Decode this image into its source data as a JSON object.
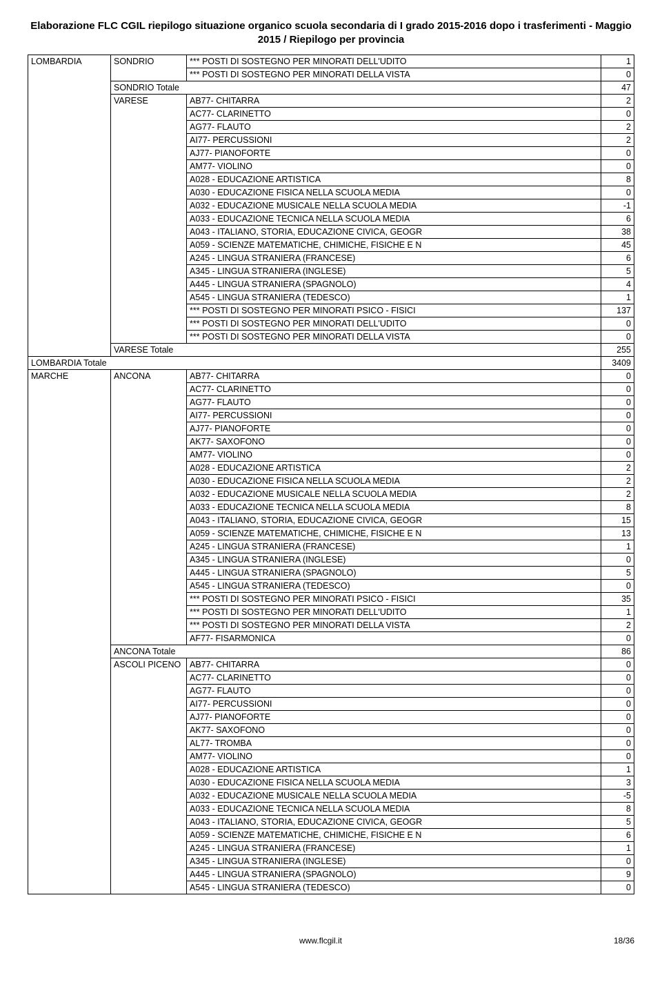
{
  "pageTitle": "Elaborazione FLC CGIL riepilogo situazione organico scuola secondaria di I grado 2015-2016 dopo i trasferimenti - Maggio 2015 / Riepilogo per provincia",
  "footerUrl": "www.flcgil.it",
  "pageNumber": "18/36",
  "regions": [
    {
      "name": "LOMBARDIA",
      "totalLabel": "LOMBARDIA Totale",
      "totalValue": 3409,
      "provinces": [
        {
          "name": "SONDRIO",
          "rows": [
            {
              "label": "*** POSTI DI SOSTEGNO    PER MINORATI DELL'UDITO",
              "value": 1
            },
            {
              "label": "*** POSTI DI SOSTEGNO    PER MINORATI DELLA VISTA",
              "value": 0
            }
          ],
          "totalLabel": "SONDRIO Totale",
          "totalValue": 47
        },
        {
          "name": "VARESE",
          "rows": [
            {
              "label": "AB77- CHITARRA",
              "value": 2
            },
            {
              "label": "AC77- CLARINETTO",
              "value": 0
            },
            {
              "label": "AG77- FLAUTO",
              "value": 2
            },
            {
              "label": "AI77- PERCUSSIONI",
              "value": 2
            },
            {
              "label": "AJ77- PIANOFORTE",
              "value": 0
            },
            {
              "label": "AM77- VIOLINO",
              "value": 0
            },
            {
              "label": "A028 - EDUCAZIONE ARTISTICA",
              "value": 8
            },
            {
              "label": "A030 - EDUCAZIONE FISICA NELLA SCUOLA MEDIA",
              "value": 0
            },
            {
              "label": "A032 - EDUCAZIONE MUSICALE NELLA SCUOLA MEDIA",
              "value": -1
            },
            {
              "label": "A033 - EDUCAZIONE TECNICA NELLA SCUOLA MEDIA",
              "value": 6
            },
            {
              "label": "A043 - ITALIANO, STORIA, EDUCAZIONE CIVICA, GEOGR",
              "value": 38
            },
            {
              "label": "A059 - SCIENZE MATEMATICHE, CHIMICHE, FISICHE E N",
              "value": 45
            },
            {
              "label": "A245 - LINGUA STRANIERA (FRANCESE)",
              "value": 6
            },
            {
              "label": "A345 - LINGUA STRANIERA (INGLESE)",
              "value": 5
            },
            {
              "label": "A445 - LINGUA STRANIERA (SPAGNOLO)",
              "value": 4
            },
            {
              "label": "A545 - LINGUA STRANIERA (TEDESCO)",
              "value": 1
            },
            {
              "label": "*** POSTI DI SOSTEGNO    PER MINORATI PSICO - FISICI",
              "value": 137
            },
            {
              "label": "*** POSTI DI SOSTEGNO    PER MINORATI DELL'UDITO",
              "value": 0
            },
            {
              "label": "*** POSTI DI SOSTEGNO    PER MINORATI DELLA VISTA",
              "value": 0
            }
          ],
          "totalLabel": "VARESE Totale",
          "totalValue": 255
        }
      ]
    },
    {
      "name": "MARCHE",
      "totalLabel": null,
      "totalValue": null,
      "provinces": [
        {
          "name": "ANCONA",
          "rows": [
            {
              "label": "AB77- CHITARRA",
              "value": 0
            },
            {
              "label": "AC77- CLARINETTO",
              "value": 0
            },
            {
              "label": "AG77- FLAUTO",
              "value": 0
            },
            {
              "label": "AI77- PERCUSSIONI",
              "value": 0
            },
            {
              "label": "AJ77- PIANOFORTE",
              "value": 0
            },
            {
              "label": "AK77- SAXOFONO",
              "value": 0
            },
            {
              "label": "AM77- VIOLINO",
              "value": 0
            },
            {
              "label": "A028 - EDUCAZIONE ARTISTICA",
              "value": 2
            },
            {
              "label": "A030 - EDUCAZIONE FISICA NELLA SCUOLA MEDIA",
              "value": 2
            },
            {
              "label": "A032 - EDUCAZIONE MUSICALE NELLA SCUOLA MEDIA",
              "value": 2
            },
            {
              "label": "A033 - EDUCAZIONE TECNICA NELLA SCUOLA MEDIA",
              "value": 8
            },
            {
              "label": "A043 - ITALIANO, STORIA, EDUCAZIONE CIVICA, GEOGR",
              "value": 15
            },
            {
              "label": "A059 - SCIENZE MATEMATICHE, CHIMICHE, FISICHE E N",
              "value": 13
            },
            {
              "label": "A245 - LINGUA STRANIERA (FRANCESE)",
              "value": 1
            },
            {
              "label": "A345 - LINGUA STRANIERA (INGLESE)",
              "value": 0
            },
            {
              "label": "A445 - LINGUA STRANIERA (SPAGNOLO)",
              "value": 5
            },
            {
              "label": "A545 - LINGUA STRANIERA (TEDESCO)",
              "value": 0
            },
            {
              "label": "*** POSTI DI SOSTEGNO    PER MINORATI PSICO - FISICI",
              "value": 35
            },
            {
              "label": "*** POSTI DI SOSTEGNO    PER MINORATI DELL'UDITO",
              "value": 1
            },
            {
              "label": "*** POSTI DI SOSTEGNO    PER MINORATI DELLA VISTA",
              "value": 2
            },
            {
              "label": "AF77- FISARMONICA",
              "value": 0
            }
          ],
          "totalLabel": "ANCONA Totale",
          "totalValue": 86
        },
        {
          "name": "ASCOLI PICENO",
          "rows": [
            {
              "label": "AB77- CHITARRA",
              "value": 0
            },
            {
              "label": "AC77- CLARINETTO",
              "value": 0
            },
            {
              "label": "AG77- FLAUTO",
              "value": 0
            },
            {
              "label": "AI77- PERCUSSIONI",
              "value": 0
            },
            {
              "label": "AJ77- PIANOFORTE",
              "value": 0
            },
            {
              "label": "AK77- SAXOFONO",
              "value": 0
            },
            {
              "label": "AL77- TROMBA",
              "value": 0
            },
            {
              "label": "AM77- VIOLINO",
              "value": 0
            },
            {
              "label": "A028 - EDUCAZIONE ARTISTICA",
              "value": 1
            },
            {
              "label": "A030 - EDUCAZIONE FISICA NELLA SCUOLA MEDIA",
              "value": 3
            },
            {
              "label": "A032 - EDUCAZIONE MUSICALE NELLA SCUOLA MEDIA",
              "value": -5
            },
            {
              "label": "A033 - EDUCAZIONE TECNICA NELLA SCUOLA MEDIA",
              "value": 8
            },
            {
              "label": "A043 - ITALIANO, STORIA, EDUCAZIONE CIVICA, GEOGR",
              "value": 5
            },
            {
              "label": "A059 - SCIENZE MATEMATICHE, CHIMICHE, FISICHE E N",
              "value": 6
            },
            {
              "label": "A245 - LINGUA STRANIERA (FRANCESE)",
              "value": 1
            },
            {
              "label": "A345 - LINGUA STRANIERA (INGLESE)",
              "value": 0
            },
            {
              "label": "A445 - LINGUA STRANIERA (SPAGNOLO)",
              "value": 9
            },
            {
              "label": "A545 - LINGUA STRANIERA (TEDESCO)",
              "value": 0
            }
          ],
          "totalLabel": null,
          "totalValue": null
        }
      ]
    }
  ]
}
